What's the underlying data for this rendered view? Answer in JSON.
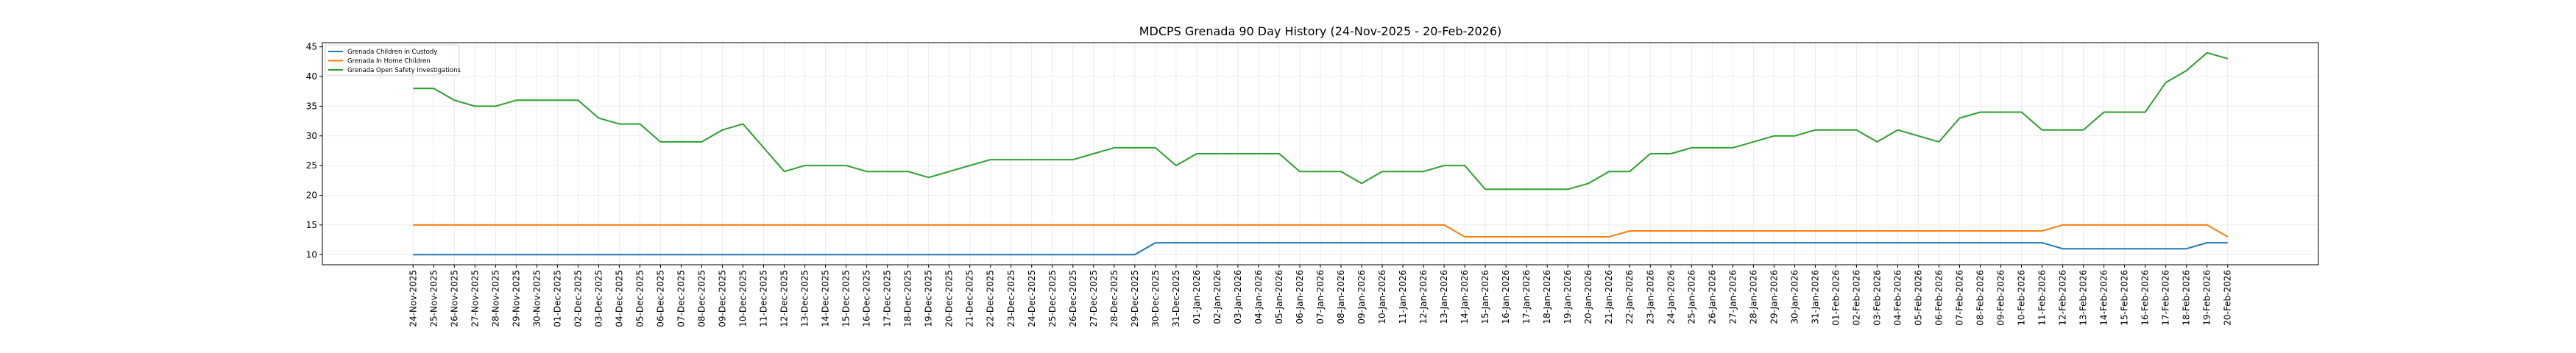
{
  "chart_data": {
    "type": "line",
    "title": "MDCPS Grenada 90 Day History (24-Nov-2025 - 20-Feb-2026)",
    "xlabel": "",
    "ylabel": "",
    "ylim": [
      8.3,
      45.7
    ],
    "yticks": [
      10,
      15,
      20,
      25,
      30,
      35,
      40,
      45
    ],
    "grid": true,
    "legend_position": "top-left",
    "x": [
      "24-Nov-2025",
      "25-Nov-2025",
      "26-Nov-2025",
      "27-Nov-2025",
      "28-Nov-2025",
      "29-Nov-2025",
      "30-Nov-2025",
      "01-Dec-2025",
      "02-Dec-2025",
      "03-Dec-2025",
      "04-Dec-2025",
      "05-Dec-2025",
      "06-Dec-2025",
      "07-Dec-2025",
      "08-Dec-2025",
      "09-Dec-2025",
      "10-Dec-2025",
      "11-Dec-2025",
      "12-Dec-2025",
      "13-Dec-2025",
      "14-Dec-2025",
      "15-Dec-2025",
      "16-Dec-2025",
      "17-Dec-2025",
      "18-Dec-2025",
      "19-Dec-2025",
      "20-Dec-2025",
      "21-Dec-2025",
      "22-Dec-2025",
      "23-Dec-2025",
      "24-Dec-2025",
      "25-Dec-2025",
      "26-Dec-2025",
      "27-Dec-2025",
      "28-Dec-2025",
      "29-Dec-2025",
      "30-Dec-2025",
      "31-Dec-2025",
      "01-Jan-2026",
      "02-Jan-2026",
      "03-Jan-2026",
      "04-Jan-2026",
      "05-Jan-2026",
      "06-Jan-2026",
      "07-Jan-2026",
      "08-Jan-2026",
      "09-Jan-2026",
      "10-Jan-2026",
      "11-Jan-2026",
      "12-Jan-2026",
      "13-Jan-2026",
      "14-Jan-2026",
      "15-Jan-2026",
      "16-Jan-2026",
      "17-Jan-2026",
      "18-Jan-2026",
      "19-Jan-2026",
      "20-Jan-2026",
      "21-Jan-2026",
      "22-Jan-2026",
      "23-Jan-2026",
      "24-Jan-2026",
      "25-Jan-2026",
      "26-Jan-2026",
      "27-Jan-2026",
      "28-Jan-2026",
      "29-Jan-2026",
      "30-Jan-2026",
      "31-Jan-2026",
      "01-Feb-2026",
      "02-Feb-2026",
      "03-Feb-2026",
      "04-Feb-2026",
      "05-Feb-2026",
      "06-Feb-2026",
      "07-Feb-2026",
      "08-Feb-2026",
      "09-Feb-2026",
      "10-Feb-2026",
      "11-Feb-2026",
      "12-Feb-2026",
      "13-Feb-2026",
      "14-Feb-2026",
      "15-Feb-2026",
      "16-Feb-2026",
      "17-Feb-2026",
      "18-Feb-2026",
      "19-Feb-2026",
      "20-Feb-2026"
    ],
    "series": [
      {
        "name": "Grenada Children in Custody",
        "color": "#1f77b4",
        "values": [
          10,
          10,
          10,
          10,
          10,
          10,
          10,
          10,
          10,
          10,
          10,
          10,
          10,
          10,
          10,
          10,
          10,
          10,
          10,
          10,
          10,
          10,
          10,
          10,
          10,
          10,
          10,
          10,
          10,
          10,
          10,
          10,
          10,
          10,
          10,
          10,
          12,
          12,
          12,
          12,
          12,
          12,
          12,
          12,
          12,
          12,
          12,
          12,
          12,
          12,
          12,
          12,
          12,
          12,
          12,
          12,
          12,
          12,
          12,
          12,
          12,
          12,
          12,
          12,
          12,
          12,
          12,
          12,
          12,
          12,
          12,
          12,
          12,
          12,
          12,
          12,
          12,
          12,
          12,
          12,
          11,
          11,
          11,
          11,
          11,
          11,
          11,
          12,
          12
        ]
      },
      {
        "name": "Grenada In Home Children",
        "color": "#ff7f0e",
        "values": [
          15,
          15,
          15,
          15,
          15,
          15,
          15,
          15,
          15,
          15,
          15,
          15,
          15,
          15,
          15,
          15,
          15,
          15,
          15,
          15,
          15,
          15,
          15,
          15,
          15,
          15,
          15,
          15,
          15,
          15,
          15,
          15,
          15,
          15,
          15,
          15,
          15,
          15,
          15,
          15,
          15,
          15,
          15,
          15,
          15,
          15,
          15,
          15,
          15,
          15,
          15,
          13,
          13,
          13,
          13,
          13,
          13,
          13,
          13,
          14,
          14,
          14,
          14,
          14,
          14,
          14,
          14,
          14,
          14,
          14,
          14,
          14,
          14,
          14,
          14,
          14,
          14,
          14,
          14,
          14,
          15,
          15,
          15,
          15,
          15,
          15,
          15,
          15,
          13
        ]
      },
      {
        "name": "Grenada Open Safety Investigations",
        "color": "#2ca02c",
        "values": [
          38,
          38,
          36,
          35,
          35,
          36,
          36,
          36,
          36,
          33,
          32,
          32,
          29,
          29,
          29,
          31,
          32,
          28,
          24,
          25,
          25,
          25,
          24,
          24,
          24,
          23,
          24,
          25,
          26,
          26,
          26,
          26,
          26,
          27,
          28,
          28,
          28,
          25,
          27,
          27,
          27,
          27,
          27,
          24,
          24,
          24,
          22,
          24,
          24,
          24,
          25,
          25,
          21,
          21,
          21,
          21,
          21,
          22,
          24,
          24,
          27,
          27,
          28,
          28,
          28,
          29,
          30,
          30,
          31,
          31,
          31,
          29,
          31,
          30,
          29,
          33,
          34,
          34,
          34,
          31,
          31,
          31,
          34,
          34,
          34,
          39,
          41,
          44,
          43
        ]
      }
    ]
  }
}
